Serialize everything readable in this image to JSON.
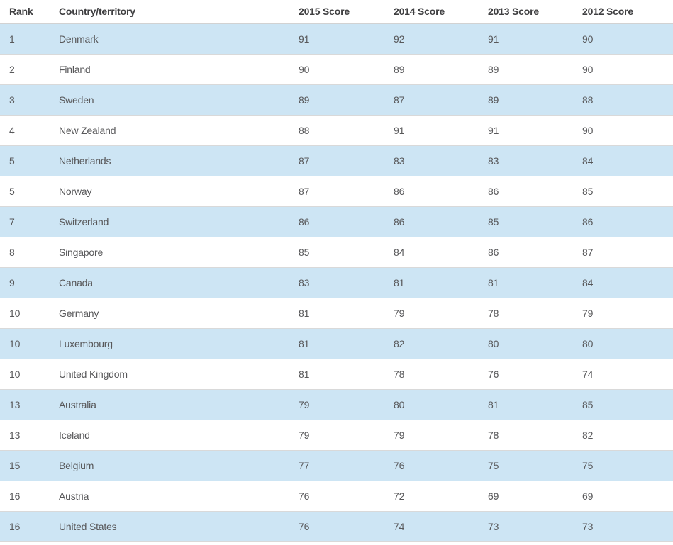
{
  "colors": {
    "row_alt": "#cde5f4",
    "row_base": "#ffffff",
    "border": "#d9d9d9",
    "header_border": "#d2d2d2",
    "header_text": "#3f3f41",
    "body_text": "#58585a"
  },
  "table": {
    "columns": [
      "Rank",
      "Country/territory",
      "2015 Score",
      "2014 Score",
      "2013 Score",
      "2012 Score"
    ],
    "rows": [
      [
        "1",
        "Denmark",
        "91",
        "92",
        "91",
        "90"
      ],
      [
        "2",
        "Finland",
        "90",
        "89",
        "89",
        "90"
      ],
      [
        "3",
        "Sweden",
        "89",
        "87",
        "89",
        "88"
      ],
      [
        "4",
        "New Zealand",
        "88",
        "91",
        "91",
        "90"
      ],
      [
        "5",
        "Netherlands",
        "87",
        "83",
        "83",
        "84"
      ],
      [
        "5",
        "Norway",
        "87",
        "86",
        "86",
        "85"
      ],
      [
        "7",
        "Switzerland",
        "86",
        "86",
        "85",
        "86"
      ],
      [
        "8",
        "Singapore",
        "85",
        "84",
        "86",
        "87"
      ],
      [
        "9",
        "Canada",
        "83",
        "81",
        "81",
        "84"
      ],
      [
        "10",
        "Germany",
        "81",
        "79",
        "78",
        "79"
      ],
      [
        "10",
        "Luxembourg",
        "81",
        "82",
        "80",
        "80"
      ],
      [
        "10",
        "United Kingdom",
        "81",
        "78",
        "76",
        "74"
      ],
      [
        "13",
        "Australia",
        "79",
        "80",
        "81",
        "85"
      ],
      [
        "13",
        "Iceland",
        "79",
        "79",
        "78",
        "82"
      ],
      [
        "15",
        "Belgium",
        "77",
        "76",
        "75",
        "75"
      ],
      [
        "16",
        "Austria",
        "76",
        "72",
        "69",
        "69"
      ],
      [
        "16",
        "United States",
        "76",
        "74",
        "73",
        "73"
      ]
    ]
  },
  "chart_data": {
    "type": "table",
    "columns": [
      "Rank",
      "Country/territory",
      "2015 Score",
      "2014 Score",
      "2013 Score",
      "2012 Score"
    ],
    "rows": [
      [
        1,
        "Denmark",
        91,
        92,
        91,
        90
      ],
      [
        2,
        "Finland",
        90,
        89,
        89,
        90
      ],
      [
        3,
        "Sweden",
        89,
        87,
        89,
        88
      ],
      [
        4,
        "New Zealand",
        88,
        91,
        91,
        90
      ],
      [
        5,
        "Netherlands",
        87,
        83,
        83,
        84
      ],
      [
        5,
        "Norway",
        87,
        86,
        86,
        85
      ],
      [
        7,
        "Switzerland",
        86,
        86,
        85,
        86
      ],
      [
        8,
        "Singapore",
        85,
        84,
        86,
        87
      ],
      [
        9,
        "Canada",
        83,
        81,
        81,
        84
      ],
      [
        10,
        "Germany",
        81,
        79,
        78,
        79
      ],
      [
        10,
        "Luxembourg",
        81,
        82,
        80,
        80
      ],
      [
        10,
        "United Kingdom",
        81,
        78,
        76,
        74
      ],
      [
        13,
        "Australia",
        79,
        80,
        81,
        85
      ],
      [
        13,
        "Iceland",
        79,
        79,
        78,
        82
      ],
      [
        15,
        "Belgium",
        77,
        76,
        75,
        75
      ],
      [
        16,
        "Austria",
        76,
        72,
        69,
        69
      ],
      [
        16,
        "United States",
        76,
        74,
        73,
        73
      ]
    ]
  }
}
